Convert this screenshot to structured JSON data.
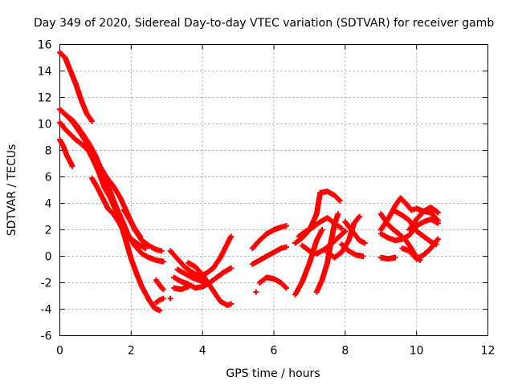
{
  "chart_data": {
    "type": "scatter",
    "title": "Day 349 of 2020, Sidereal Day-to-day VTEC variation (SDTVAR) for receiver gamb",
    "xlabel": "GPS time / hours",
    "ylabel": "SDTVAR / TECUs",
    "xlim": [
      0,
      12
    ],
    "ylim": [
      -6,
      16
    ],
    "xticks": [
      "0",
      "2",
      "4",
      "6",
      "8",
      "10",
      "12"
    ],
    "yticks": [
      "-6",
      "-4",
      "-2",
      "0",
      "2",
      "4",
      "6",
      "8",
      "10",
      "12",
      "14",
      "16"
    ],
    "grid": true,
    "marker": "+",
    "color": "#ff0000",
    "series": [
      {
        "points": [
          [
            0.0,
            15.4
          ],
          [
            0.15,
            15.0
          ],
          [
            0.3,
            14.0
          ],
          [
            0.45,
            13.0
          ],
          [
            0.6,
            11.8
          ],
          [
            0.75,
            10.8
          ],
          [
            0.9,
            10.2
          ]
        ]
      },
      {
        "points": [
          [
            0.0,
            11.1
          ],
          [
            0.2,
            10.6
          ],
          [
            0.4,
            10.0
          ],
          [
            0.55,
            9.4
          ],
          [
            0.7,
            8.8
          ],
          [
            0.9,
            7.8
          ],
          [
            1.1,
            6.9
          ],
          [
            1.3,
            6.0
          ],
          [
            1.5,
            5.3
          ],
          [
            1.7,
            4.4
          ],
          [
            1.9,
            3.2
          ],
          [
            2.1,
            2.0
          ],
          [
            2.3,
            1.2
          ],
          [
            2.5,
            0.8
          ],
          [
            2.7,
            0.5
          ],
          [
            2.85,
            0.4
          ]
        ]
      },
      {
        "points": [
          [
            0.0,
            10.1
          ],
          [
            0.15,
            9.6
          ],
          [
            0.3,
            9.2
          ],
          [
            0.45,
            8.8
          ],
          [
            0.6,
            8.5
          ],
          [
            0.8,
            8.0
          ],
          [
            0.95,
            7.2
          ],
          [
            1.1,
            6.3
          ],
          [
            1.25,
            5.2
          ],
          [
            1.4,
            4.5
          ],
          [
            1.55,
            3.6
          ],
          [
            1.7,
            2.5
          ],
          [
            1.85,
            1.2
          ],
          [
            2.0,
            -0.2
          ],
          [
            2.15,
            -1.3
          ],
          [
            2.3,
            -2.3
          ],
          [
            2.5,
            -3.3
          ],
          [
            2.65,
            -3.9
          ],
          [
            2.8,
            -4.1
          ]
        ]
      },
      {
        "points": [
          [
            0.0,
            8.8
          ],
          [
            0.1,
            8.3
          ],
          [
            0.2,
            7.6
          ],
          [
            0.3,
            7.1
          ],
          [
            0.35,
            6.8
          ]
        ]
      },
      {
        "points": [
          [
            0.2,
            10.6
          ],
          [
            0.35,
            10.3
          ],
          [
            0.5,
            9.8
          ],
          [
            0.65,
            9.2
          ],
          [
            0.8,
            8.6
          ],
          [
            1.0,
            7.6
          ],
          [
            1.15,
            6.6
          ],
          [
            1.3,
            5.7
          ],
          [
            1.45,
            4.6
          ],
          [
            1.6,
            3.6
          ],
          [
            1.75,
            2.7
          ],
          [
            1.9,
            1.7
          ],
          [
            2.1,
            0.8
          ],
          [
            2.3,
            0.2
          ],
          [
            2.5,
            -0.1
          ],
          [
            2.7,
            -0.3
          ],
          [
            2.9,
            -0.4
          ]
        ]
      },
      {
        "points": [
          [
            0.9,
            5.9
          ],
          [
            1.05,
            5.2
          ],
          [
            1.2,
            4.4
          ],
          [
            1.35,
            3.6
          ],
          [
            1.5,
            3.2
          ],
          [
            1.65,
            2.6
          ],
          [
            1.8,
            1.9
          ],
          [
            2.0,
            1.3
          ],
          [
            2.2,
            0.9
          ],
          [
            2.4,
            0.6
          ]
        ]
      },
      {
        "points": [
          [
            1.8,
            3.5
          ],
          [
            1.95,
            2.8
          ],
          [
            2.1,
            2.1
          ],
          [
            2.25,
            1.5
          ]
        ]
      },
      {
        "points": [
          [
            2.7,
            -3.5
          ],
          [
            2.8,
            -3.3
          ],
          [
            2.9,
            -3.2
          ]
        ]
      },
      {
        "points": [
          [
            2.7,
            -1.8
          ],
          [
            2.8,
            -2.2
          ],
          [
            2.9,
            -2.5
          ]
        ]
      },
      {
        "points": [
          [
            3.1,
            0.4
          ],
          [
            3.3,
            -0.2
          ],
          [
            3.5,
            -0.8
          ],
          [
            3.7,
            -1.2
          ],
          [
            3.9,
            -1.5
          ],
          [
            4.1,
            -1.3
          ],
          [
            4.3,
            -0.9
          ],
          [
            4.5,
            -0.1
          ],
          [
            4.65,
            0.7
          ],
          [
            4.8,
            1.5
          ]
        ]
      },
      {
        "points": [
          [
            3.2,
            -1.6
          ],
          [
            3.4,
            -1.9
          ],
          [
            3.6,
            -2.1
          ],
          [
            3.8,
            -2.4
          ],
          [
            4.0,
            -2.3
          ],
          [
            4.2,
            -2.0
          ],
          [
            4.4,
            -1.6
          ],
          [
            4.6,
            -1.2
          ],
          [
            4.8,
            -0.9
          ]
        ]
      },
      {
        "points": [
          [
            3.3,
            -1.0
          ],
          [
            3.5,
            -1.3
          ],
          [
            3.7,
            -1.6
          ],
          [
            3.9,
            -1.8
          ],
          [
            4.1,
            -2.0
          ]
        ]
      },
      {
        "points": [
          [
            3.6,
            -0.5
          ],
          [
            3.8,
            -0.8
          ],
          [
            4.0,
            -1.4
          ],
          [
            4.2,
            -2.2
          ],
          [
            4.35,
            -2.8
          ],
          [
            4.5,
            -3.4
          ],
          [
            4.7,
            -3.7
          ],
          [
            4.8,
            -3.6
          ]
        ]
      },
      {
        "points": [
          [
            3.2,
            -2.4
          ],
          [
            3.4,
            -2.5
          ],
          [
            3.6,
            -2.3
          ]
        ]
      },
      {
        "points": [
          [
            3.1,
            -3.2
          ]
        ]
      },
      {
        "points": [
          [
            5.4,
            0.6
          ],
          [
            5.6,
            1.2
          ],
          [
            5.8,
            1.7
          ],
          [
            6.0,
            2.0
          ],
          [
            6.2,
            2.2
          ],
          [
            6.35,
            2.3
          ]
        ]
      },
      {
        "points": [
          [
            5.4,
            -0.6
          ],
          [
            5.6,
            -0.3
          ],
          [
            5.8,
            0.0
          ],
          [
            6.0,
            0.3
          ],
          [
            6.2,
            0.6
          ],
          [
            6.35,
            0.7
          ]
        ]
      },
      {
        "points": [
          [
            5.6,
            -2.0
          ],
          [
            5.8,
            -1.6
          ],
          [
            6.0,
            -1.7
          ],
          [
            6.2,
            -2.0
          ],
          [
            6.35,
            -2.4
          ]
        ]
      },
      {
        "points": [
          [
            5.5,
            -2.7
          ]
        ]
      },
      {
        "points": [
          [
            6.6,
            1.0
          ],
          [
            6.8,
            1.4
          ],
          [
            7.0,
            2.0
          ],
          [
            7.2,
            3.2
          ],
          [
            7.3,
            4.8
          ],
          [
            7.5,
            4.9
          ],
          [
            7.7,
            4.6
          ],
          [
            7.85,
            4.2
          ]
        ]
      },
      {
        "points": [
          [
            6.6,
            -2.9
          ],
          [
            6.8,
            -1.9
          ],
          [
            7.0,
            -0.5
          ],
          [
            7.2,
            1.2
          ],
          [
            7.35,
            2.0
          ]
        ]
      },
      {
        "points": [
          [
            7.2,
            -2.7
          ],
          [
            7.35,
            -1.8
          ],
          [
            7.5,
            -0.5
          ],
          [
            7.6,
            1.1
          ],
          [
            7.7,
            2.4
          ],
          [
            7.8,
            3.2
          ]
        ]
      },
      {
        "points": [
          [
            6.8,
            0.8
          ],
          [
            7.0,
            0.4
          ],
          [
            7.2,
            0.2
          ],
          [
            7.4,
            0.5
          ],
          [
            7.6,
            0.9
          ],
          [
            7.8,
            1.4
          ],
          [
            8.0,
            1.9
          ]
        ]
      },
      {
        "points": [
          [
            7.5,
            0.3
          ],
          [
            7.7,
            -0.1
          ],
          [
            7.9,
            0.3
          ],
          [
            8.1,
            1.2
          ],
          [
            8.25,
            2.5
          ],
          [
            8.4,
            3.0
          ]
        ]
      },
      {
        "points": [
          [
            6.7,
            1.5
          ],
          [
            6.9,
            1.9
          ],
          [
            7.1,
            2.2
          ],
          [
            7.3,
            2.6
          ],
          [
            7.5,
            2.9
          ],
          [
            7.7,
            2.5
          ],
          [
            7.9,
            2.1
          ]
        ]
      },
      {
        "points": [
          [
            7.9,
            0.9
          ],
          [
            8.1,
            0.4
          ],
          [
            8.3,
            0.1
          ],
          [
            8.5,
            0.0
          ]
        ]
      },
      {
        "points": [
          [
            8.0,
            2.6
          ],
          [
            8.2,
            1.9
          ],
          [
            8.4,
            1.2
          ],
          [
            8.55,
            1.0
          ]
        ]
      },
      {
        "points": [
          [
            9.0,
            -0.1
          ],
          [
            9.2,
            -0.2
          ],
          [
            9.4,
            -0.1
          ]
        ]
      },
      {
        "points": [
          [
            9.0,
            2.0
          ],
          [
            9.2,
            2.8
          ],
          [
            9.4,
            3.8
          ],
          [
            9.55,
            4.4
          ],
          [
            9.7,
            4.0
          ],
          [
            9.85,
            3.5
          ],
          [
            10.0,
            3.6
          ],
          [
            10.2,
            3.4
          ],
          [
            10.4,
            3.7
          ],
          [
            10.6,
            3.3
          ]
        ]
      },
      {
        "points": [
          [
            9.0,
            1.7
          ],
          [
            9.2,
            1.4
          ],
          [
            9.4,
            1.2
          ],
          [
            9.6,
            1.3
          ],
          [
            9.8,
            1.6
          ],
          [
            10.0,
            2.3
          ],
          [
            10.2,
            2.6
          ],
          [
            10.4,
            2.8
          ],
          [
            10.6,
            2.5
          ]
        ]
      },
      {
        "points": [
          [
            9.0,
            3.2
          ],
          [
            9.2,
            2.4
          ],
          [
            9.4,
            1.9
          ],
          [
            9.55,
            1.6
          ],
          [
            9.7,
            1.2
          ],
          [
            9.85,
            0.6
          ],
          [
            10.0,
            -0.1
          ],
          [
            10.1,
            -0.3
          ]
        ]
      },
      {
        "points": [
          [
            9.6,
            0.6
          ],
          [
            9.8,
            0.4
          ],
          [
            10.0,
            -0.2
          ],
          [
            10.2,
            0.1
          ],
          [
            10.4,
            0.6
          ],
          [
            10.6,
            1.3
          ]
        ]
      },
      {
        "points": [
          [
            9.4,
            3.4
          ],
          [
            9.6,
            3.1
          ],
          [
            9.8,
            2.7
          ],
          [
            10.0,
            1.9
          ],
          [
            10.2,
            1.5
          ],
          [
            10.4,
            1.1
          ],
          [
            10.55,
            0.9
          ]
        ]
      },
      {
        "points": [
          [
            9.8,
            2.0
          ],
          [
            10.0,
            2.8
          ],
          [
            10.2,
            3.4
          ],
          [
            10.4,
            3.3
          ],
          [
            10.6,
            2.7
          ]
        ]
      }
    ]
  }
}
